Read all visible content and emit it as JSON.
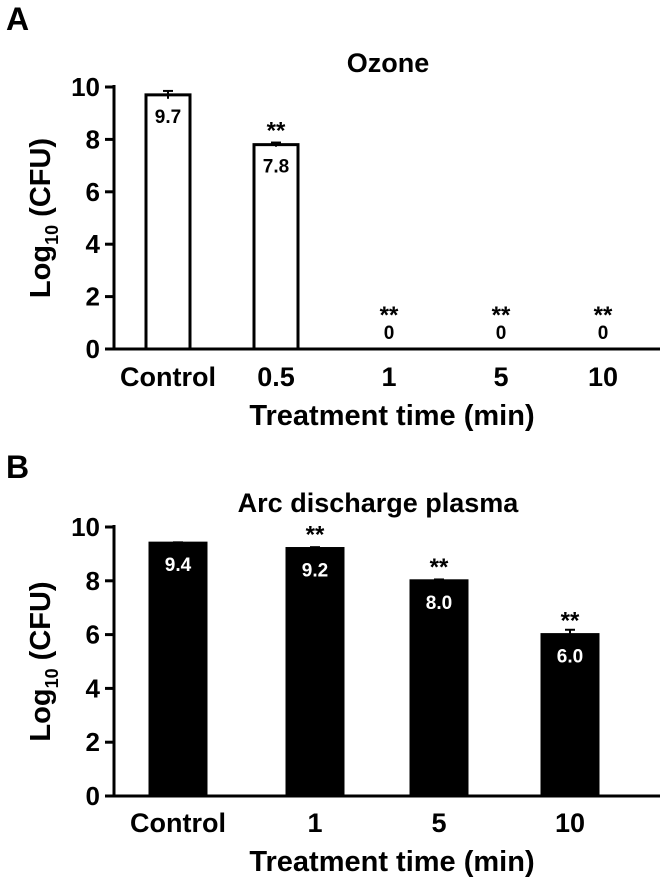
{
  "chart_data": [
    {
      "panel_label": "A",
      "type": "bar",
      "title": "Ozone",
      "xlabel": "Treatment time (min)",
      "ylabel_main": "Log",
      "ylabel_sub": "10",
      "ylabel_tail": " (CFU)",
      "ylim": [
        0,
        10
      ],
      "yticks": [
        "0",
        "2",
        "4",
        "6",
        "8",
        "10"
      ],
      "categories": [
        "Control",
        "0.5",
        "1",
        "5",
        "10"
      ],
      "values": [
        9.7,
        7.8,
        0,
        0,
        0
      ],
      "errors": [
        0.15,
        0.08,
        0,
        0,
        0
      ],
      "value_labels": [
        "9.7",
        "7.8",
        "0",
        "0",
        "0"
      ],
      "significance": [
        "",
        "**",
        "**",
        "**",
        "**"
      ],
      "bar_fill": "#ffffff",
      "bar_stroke": "#000000",
      "value_label_color": "#000000"
    },
    {
      "panel_label": "B",
      "type": "bar",
      "title": "Arc discharge plasma",
      "xlabel": "Treatment time (min)",
      "ylabel_main": "Log",
      "ylabel_sub": "10",
      "ylabel_tail": " (CFU)",
      "ylim": [
        0,
        10
      ],
      "yticks": [
        "0",
        "2",
        "4",
        "6",
        "8",
        "10"
      ],
      "categories": [
        "Control",
        "1",
        "5",
        "10"
      ],
      "values": [
        9.4,
        9.2,
        8.0,
        6.0
      ],
      "errors": [
        0.03,
        0.05,
        0.05,
        0.18
      ],
      "value_labels": [
        "9.4",
        "9.2",
        "8.0",
        "6.0"
      ],
      "significance": [
        "",
        "**",
        "**",
        "**"
      ],
      "bar_fill": "#000000",
      "bar_stroke": "#000000",
      "value_label_color": "#ffffff"
    }
  ]
}
